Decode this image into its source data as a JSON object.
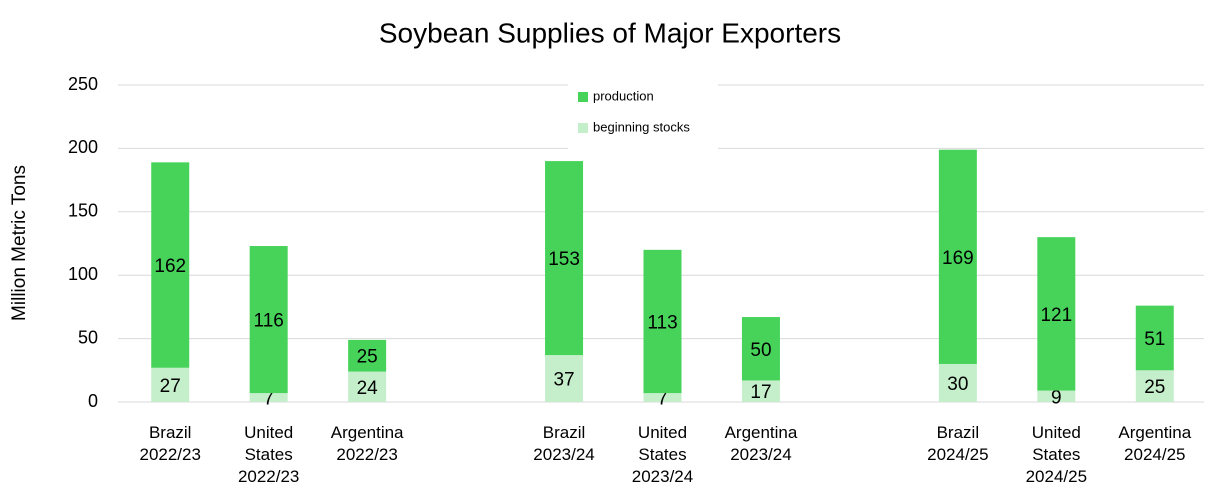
{
  "chart_data": {
    "type": "stacked_bar",
    "title": "Soybean Supplies of Major Exporters",
    "y_label": "Million Metric Tons",
    "categories": [
      "Brazil 2022/23",
      "United States 2022/23",
      "Argentina 2022/23",
      null,
      "Brazil 2023/24",
      "United States 2023/24",
      "Argentina 2023/24",
      null,
      "Brazil 2024/25",
      "United States 2024/25",
      "Argentina 2024/25"
    ],
    "series": [
      {
        "name": "beginning stocks",
        "color": "#c5efcb",
        "values": [
          27,
          7,
          24,
          null,
          37,
          7,
          17,
          null,
          30,
          9,
          25
        ]
      },
      {
        "name": "production",
        "color": "#47d35a",
        "values": [
          162,
          116,
          25,
          null,
          153,
          113,
          50,
          null,
          169,
          121,
          51
        ]
      }
    ],
    "ylim": [
      0,
      250
    ],
    "yticks": [
      0,
      50,
      100,
      150,
      200,
      250
    ],
    "grid": true,
    "legend": "top"
  }
}
